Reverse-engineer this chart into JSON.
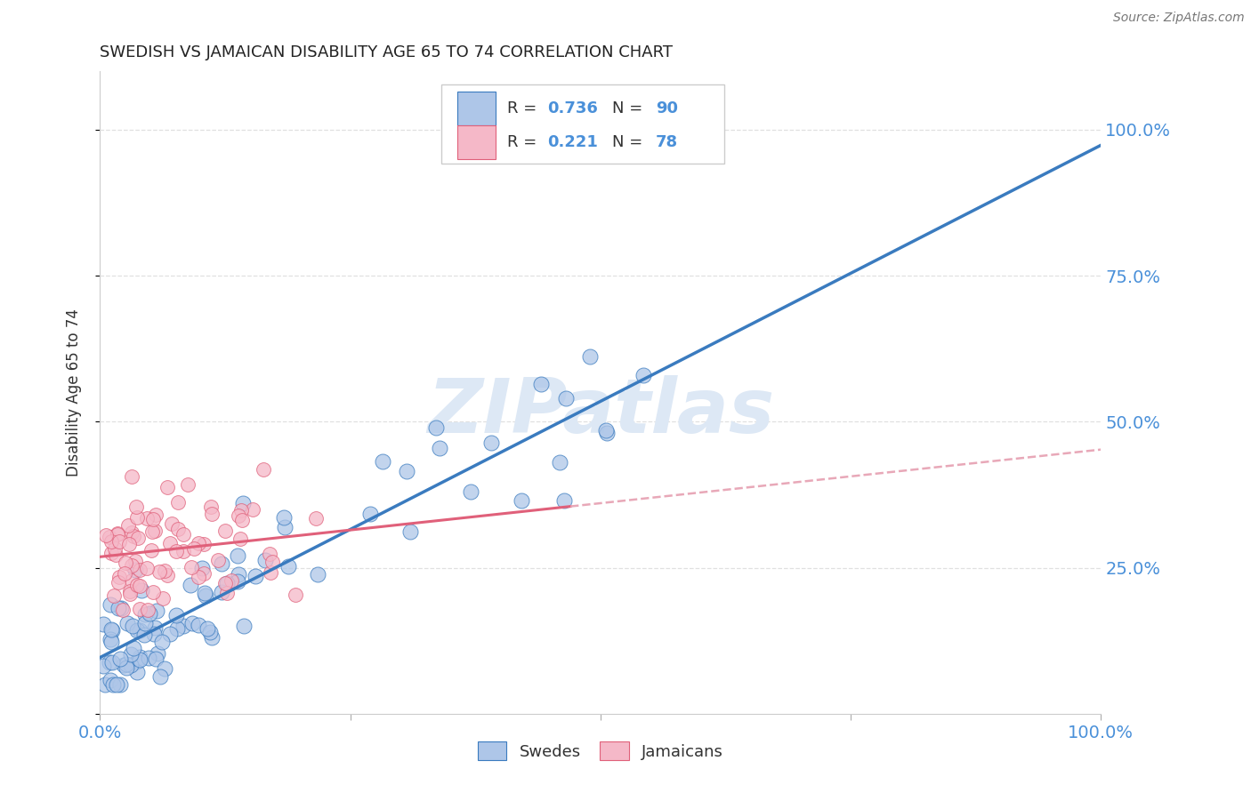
{
  "title": "SWEDISH VS JAMAICAN DISABILITY AGE 65 TO 74 CORRELATION CHART",
  "source": "Source: ZipAtlas.com",
  "ylabel": "Disability Age 65 to 74",
  "xlim": [
    0.0,
    1.0
  ],
  "ylim": [
    0.0,
    1.1
  ],
  "swedes_R": 0.736,
  "swedes_N": 90,
  "jamaicans_R": 0.221,
  "jamaicans_N": 78,
  "swede_color": "#aec6e8",
  "jamaican_color": "#f5b8c8",
  "swede_line_color": "#3a7bbf",
  "jamaican_line_color": "#e0607a",
  "jamaican_dash_color": "#e8a8b8",
  "title_color": "#222222",
  "source_color": "#777777",
  "axis_color": "#4a90d9",
  "watermark_color": "#dde8f5",
  "background_color": "#ffffff",
  "grid_color": "#dddddd",
  "legend_swede_fill": "#aec6e8",
  "legend_swede_edge": "#3a7bbf",
  "legend_jamaican_fill": "#f5b8c8",
  "legend_jamaican_edge": "#e0607a"
}
